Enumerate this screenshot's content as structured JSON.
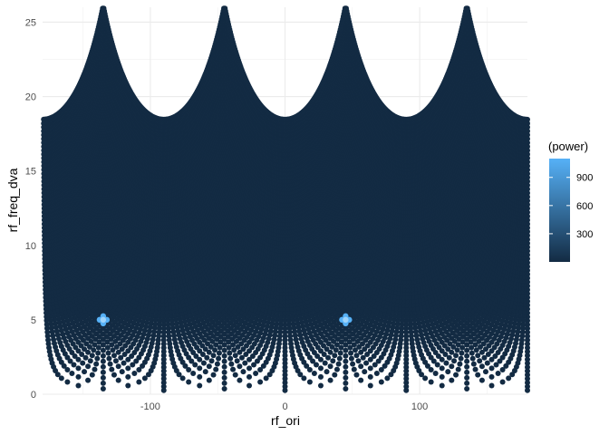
{
  "chart_data": {
    "type": "scatter",
    "title": "",
    "xlabel": "rf_ori",
    "ylabel": "rf_freq_dva",
    "xlim": [
      -180,
      180
    ],
    "ylim": [
      0,
      26
    ],
    "x_ticks": [
      -100,
      0,
      100
    ],
    "y_ticks": [
      0,
      5,
      10,
      15,
      20,
      25
    ],
    "x_tick_labels": [
      "-100",
      "0",
      "100"
    ],
    "y_tick_labels": [
      "0",
      "5",
      "10",
      "15",
      "20",
      "25"
    ],
    "grid": true,
    "background": "#ffffff",
    "point_color_low": "#132B43",
    "point_color_high": "#56B1F7",
    "point_set": {
      "description_of_rule": "frequency grid points: rf_freq_dva = sqrt(i^2 + j^2) * step, rf_ori = atan2(j, i) in degrees, for integer i, j",
      "step_dva": 0.26,
      "max_cartesian_dva": 18.5
    },
    "color_scale": {
      "variable": "(power)",
      "min": 0,
      "max": 1100,
      "ticks": [
        300,
        600,
        900
      ],
      "tick_labels": [
        "300",
        "600",
        "900"
      ]
    },
    "highlights": [
      {
        "x": -135,
        "y": 5,
        "power": 1100
      },
      {
        "x": 45,
        "y": 5,
        "power": 1100
      }
    ],
    "legend_position": "right"
  }
}
